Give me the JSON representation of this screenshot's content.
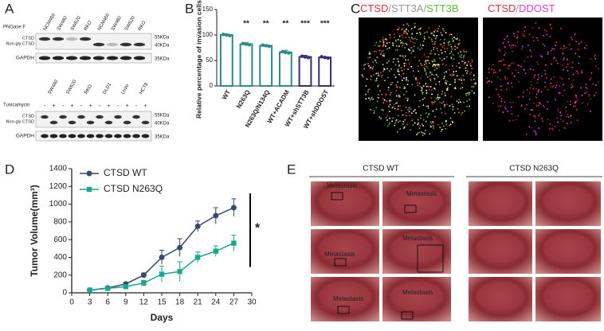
{
  "panels": {
    "a": {
      "label": "A",
      "blot1": {
        "treatment": "PNGase F",
        "lanes": [
          "NCM460",
          "SW480",
          "SW620",
          "RKO",
          "NCM460",
          "SW480",
          "SW620",
          "RKO"
        ],
        "bands": [
          "CTSD",
          "Non-gly CTSD",
          "GAPDH"
        ],
        "markers": [
          "55KDa",
          "40KDa",
          "35KDa"
        ]
      },
      "blot2": {
        "treatment": "Tunicamycin",
        "lanes": [
          "SW480",
          "SW620",
          "RKO",
          "DLD1",
          "LoVo",
          "HCT8"
        ],
        "signs": [
          "-",
          "+",
          "-",
          "+",
          "-",
          "+",
          "-",
          "+",
          "-",
          "+",
          "-",
          "+"
        ],
        "bands": [
          "CTSD",
          "Non-gly CTSD",
          "GAPDH"
        ],
        "markers": [
          "55KDa",
          "40KDa",
          "35KDa"
        ]
      }
    },
    "b": {
      "label": "B"
    },
    "c": {
      "label": "C",
      "left_title": [
        "CTSD",
        "/",
        "STT3A",
        "/",
        "STT3B"
      ],
      "left_colors": [
        "#e8303a",
        "#999999",
        "#999999",
        "#999999",
        "#5bbf3a"
      ],
      "right_title": [
        "CTSD",
        "/",
        "DDOST"
      ],
      "right_colors": [
        "#e8303a",
        "#999999",
        "#e040e0"
      ]
    },
    "d": {
      "label": "D"
    },
    "e": {
      "label": "E",
      "groups": [
        "CTSD WT",
        "CTSD N263Q"
      ],
      "annotations": [
        "Metastasis",
        "Metastasis",
        "Metastasis",
        "Metastasis",
        "Metastasis",
        "Metastasis"
      ]
    }
  },
  "chart_data": [
    {
      "type": "bar",
      "ylabel": "Relative percentage of invasion cells(%)",
      "categories": [
        "WT",
        "N263Q",
        "N263Q/N134Q",
        "WT+ACADM",
        "WT+shSTT3B",
        "WT+shDDOST"
      ],
      "values": [
        100,
        82,
        79,
        66,
        57,
        56
      ],
      "errors": [
        2,
        3,
        2,
        4,
        3,
        1
      ],
      "colors": [
        "#2a8a8a",
        "#2a8a8a",
        "#2a8a8a",
        "#2a8a8a",
        "#3b2a7a",
        "#3b2a7a"
      ],
      "significance": [
        null,
        "**",
        "**",
        "**",
        "***",
        "***"
      ],
      "ylim": [
        0,
        150
      ],
      "yticks": [
        0,
        50,
        100,
        150
      ]
    },
    {
      "type": "line",
      "xlabel": "Days",
      "ylabel": "Tumor Volume(mm³)",
      "x": [
        3,
        6,
        9,
        12,
        15,
        18,
        21,
        24,
        27
      ],
      "series": [
        {
          "name": "CTSD WT",
          "color": "#3a4a6b",
          "values": [
            30,
            55,
            100,
            200,
            400,
            510,
            750,
            870,
            960
          ],
          "errors": [
            5,
            10,
            15,
            25,
            80,
            100,
            60,
            90,
            100
          ]
        },
        {
          "name": "CTSD N263Q",
          "color": "#1aa88a",
          "values": [
            30,
            50,
            70,
            110,
            210,
            240,
            400,
            470,
            560
          ],
          "errors": [
            5,
            8,
            15,
            30,
            90,
            110,
            60,
            60,
            90
          ]
        }
      ],
      "significance": "*",
      "xlim": [
        0,
        30
      ],
      "xticks": [
        0,
        3,
        6,
        9,
        12,
        15,
        18,
        21,
        24,
        27,
        30
      ],
      "ylim": [
        0,
        1400
      ],
      "yticks": [
        0,
        200,
        400,
        600,
        800,
        1000,
        1200,
        1400
      ]
    }
  ]
}
